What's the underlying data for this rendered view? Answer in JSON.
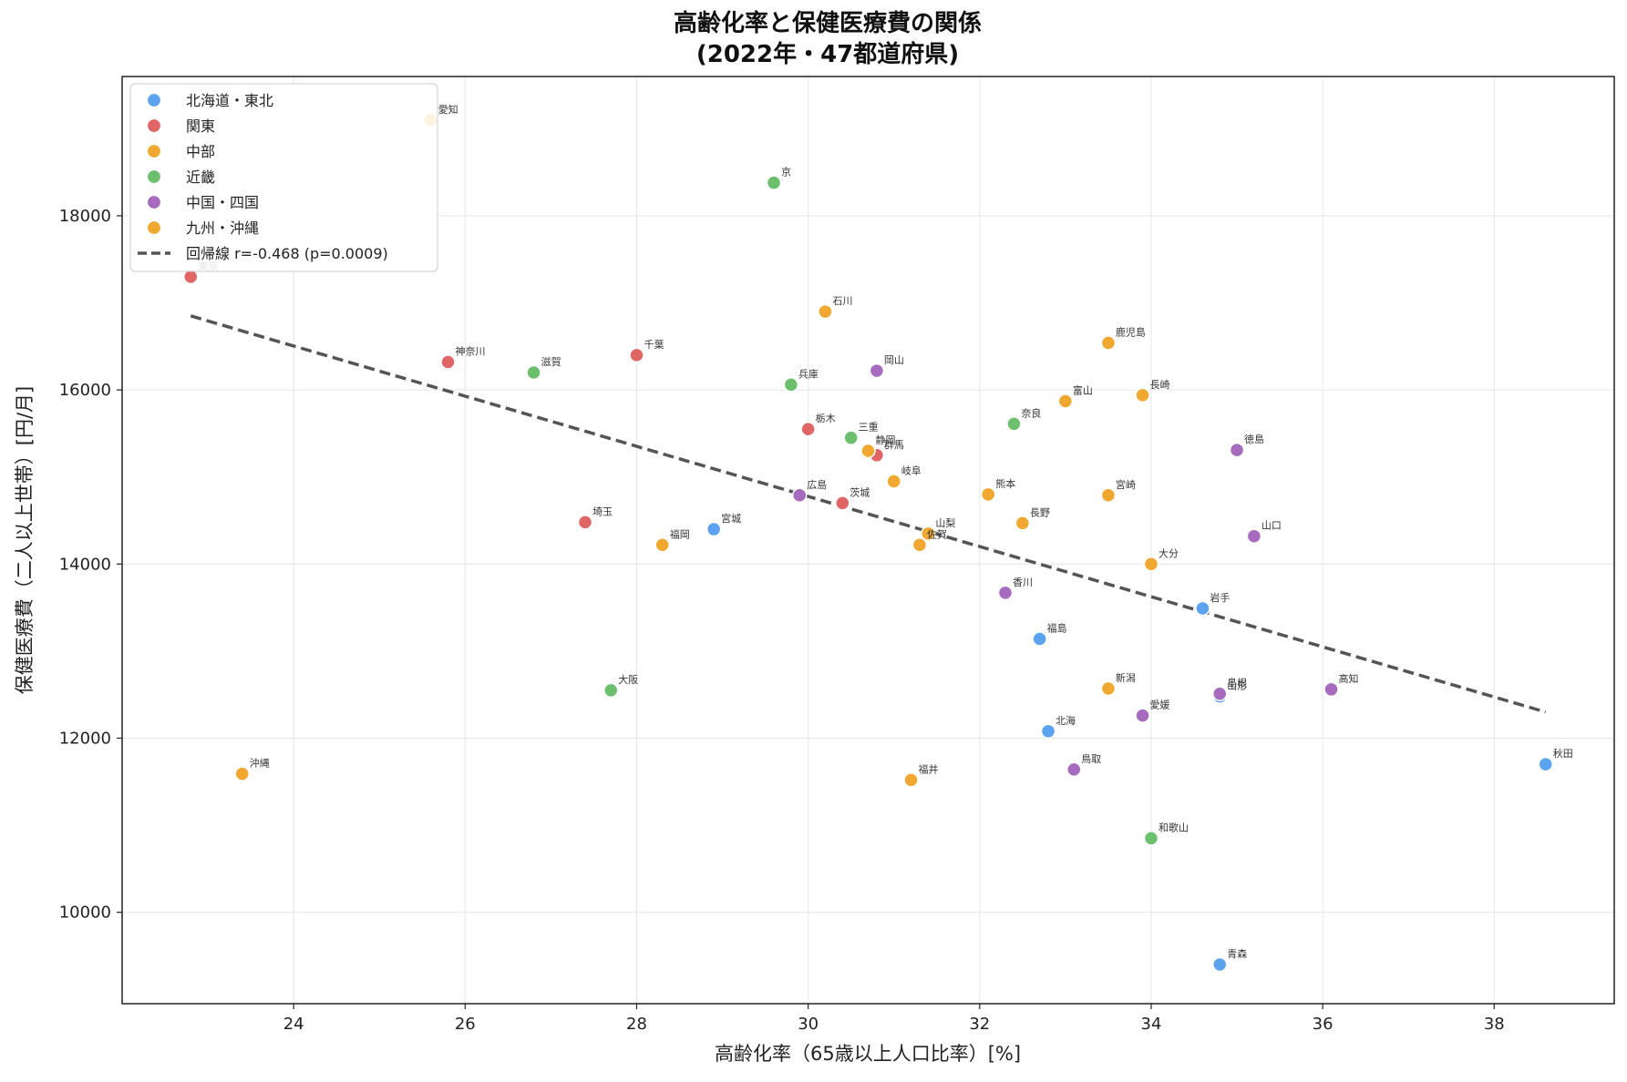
{
  "chart_data": {
    "type": "scatter",
    "title": "高齢化率と保健医療費の関係",
    "subtitle": "(2022年・47都道府県)",
    "xlabel": "高齢化率（65歳以上人口比率）[%]",
    "ylabel": "保健医療費（二人以上世帯）[円/月]",
    "xlim": [
      22,
      39.4
    ],
    "ylim": [
      8950,
      19600
    ],
    "xticks": [
      24,
      26,
      28,
      30,
      32,
      34,
      36,
      38
    ],
    "yticks": [
      10000,
      12000,
      14000,
      16000,
      18000
    ],
    "grid": true,
    "legend_position": "top-left",
    "regression": {
      "label": "回帰線  r=-0.468  (p=0.0009)",
      "x": [
        22.8,
        38.6
      ],
      "y": [
        16850,
        12300
      ],
      "color": "#555555"
    },
    "series": [
      {
        "name": "北海道・東北",
        "color": "#5ba3ef",
        "points": [
          {
            "label": "北海",
            "x": 32.8,
            "y": 12080
          },
          {
            "label": "青森",
            "x": 34.8,
            "y": 9400
          },
          {
            "label": "岩手",
            "x": 34.6,
            "y": 13490
          },
          {
            "label": "宮城",
            "x": 28.9,
            "y": 14400
          },
          {
            "label": "秋田",
            "x": 38.6,
            "y": 11700
          },
          {
            "label": "山形",
            "x": 34.8,
            "y": 12480
          },
          {
            "label": "福島",
            "x": 32.7,
            "y": 13140
          }
        ]
      },
      {
        "name": "関東",
        "color": "#e06666",
        "points": [
          {
            "label": "茨城",
            "x": 30.4,
            "y": 14700
          },
          {
            "label": "栃木",
            "x": 30.0,
            "y": 15550
          },
          {
            "label": "群馬",
            "x": 30.8,
            "y": 15250
          },
          {
            "label": "埼玉",
            "x": 27.4,
            "y": 14480
          },
          {
            "label": "千葉",
            "x": 28.0,
            "y": 16400
          },
          {
            "label": "神奈川",
            "x": 25.8,
            "y": 16320
          },
          {
            "label": "東京",
            "x": 22.8,
            "y": 17300
          }
        ]
      },
      {
        "name": "中部",
        "color": "#f0a830",
        "points": [
          {
            "label": "新潟",
            "x": 33.5,
            "y": 12570
          },
          {
            "label": "富山",
            "x": 33.0,
            "y": 15870
          },
          {
            "label": "石川",
            "x": 30.2,
            "y": 16900
          },
          {
            "label": "福井",
            "x": 31.2,
            "y": 11520
          },
          {
            "label": "山梨",
            "x": 31.4,
            "y": 14350
          },
          {
            "label": "長野",
            "x": 32.5,
            "y": 14470
          },
          {
            "label": "岐阜",
            "x": 31.0,
            "y": 14950
          },
          {
            "label": "静岡",
            "x": 30.7,
            "y": 15300
          },
          {
            "label": "愛知",
            "x": 25.6,
            "y": 19100
          }
        ]
      },
      {
        "name": "近畿",
        "color": "#6cbf6c",
        "points": [
          {
            "label": "三重",
            "x": 30.5,
            "y": 15450
          },
          {
            "label": "滋賀",
            "x": 26.8,
            "y": 16200
          },
          {
            "label": "京",
            "x": 29.6,
            "y": 18380
          },
          {
            "label": "大阪",
            "x": 27.7,
            "y": 12550
          },
          {
            "label": "兵庫",
            "x": 29.8,
            "y": 16060
          },
          {
            "label": "奈良",
            "x": 32.4,
            "y": 15610
          },
          {
            "label": "和歌山",
            "x": 34.0,
            "y": 10850
          }
        ]
      },
      {
        "name": "中国・四国",
        "color": "#a66bbf",
        "points": [
          {
            "label": "鳥取",
            "x": 33.1,
            "y": 11640
          },
          {
            "label": "島根",
            "x": 34.8,
            "y": 12510
          },
          {
            "label": "岡山",
            "x": 30.8,
            "y": 16220
          },
          {
            "label": "広島",
            "x": 29.9,
            "y": 14790
          },
          {
            "label": "山口",
            "x": 35.2,
            "y": 14320
          },
          {
            "label": "徳島",
            "x": 35.0,
            "y": 15310
          },
          {
            "label": "香川",
            "x": 32.3,
            "y": 13670
          },
          {
            "label": "愛媛",
            "x": 33.9,
            "y": 12260
          },
          {
            "label": "高知",
            "x": 36.1,
            "y": 12560
          }
        ]
      },
      {
        "name": "九州・沖縄",
        "color": "#f0a830",
        "points": [
          {
            "label": "福岡",
            "x": 28.3,
            "y": 14220
          },
          {
            "label": "佐賀",
            "x": 31.3,
            "y": 14220
          },
          {
            "label": "長崎",
            "x": 33.9,
            "y": 15940
          },
          {
            "label": "熊本",
            "x": 32.1,
            "y": 14800
          },
          {
            "label": "大分",
            "x": 34.0,
            "y": 14000
          },
          {
            "label": "宮崎",
            "x": 33.5,
            "y": 14790
          },
          {
            "label": "鹿児島",
            "x": 33.5,
            "y": 16540
          },
          {
            "label": "沖縄",
            "x": 23.4,
            "y": 11590
          }
        ]
      }
    ]
  }
}
